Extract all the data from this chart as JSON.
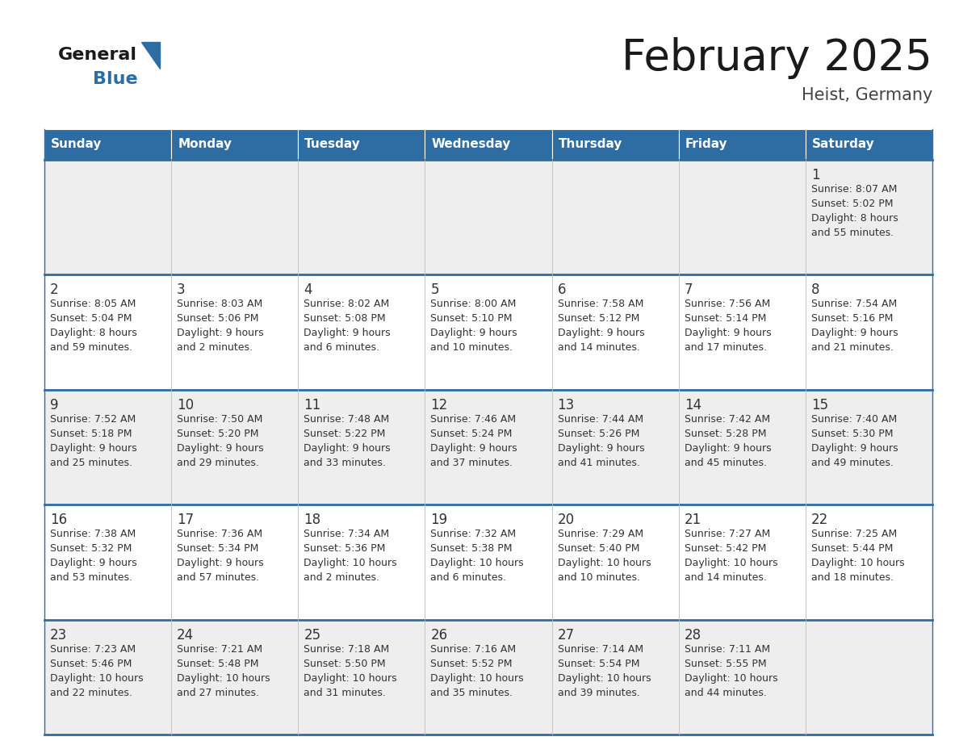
{
  "title": "February 2025",
  "subtitle": "Heist, Germany",
  "header_bg": "#2e6da4",
  "header_text_color": "#ffffff",
  "cell_bg_row0": "#eeeeee",
  "cell_bg_row1": "#ffffff",
  "cell_bg_row2": "#eeeeee",
  "cell_bg_row3": "#ffffff",
  "cell_bg_row4": "#eeeeee",
  "cell_border_color": "#2e6da4",
  "cell_text_color": "#333333",
  "days_of_week": [
    "Sunday",
    "Monday",
    "Tuesday",
    "Wednesday",
    "Thursday",
    "Friday",
    "Saturday"
  ],
  "calendar_data": [
    [
      {
        "day": "",
        "sunrise": "",
        "sunset": "",
        "daylight": ""
      },
      {
        "day": "",
        "sunrise": "",
        "sunset": "",
        "daylight": ""
      },
      {
        "day": "",
        "sunrise": "",
        "sunset": "",
        "daylight": ""
      },
      {
        "day": "",
        "sunrise": "",
        "sunset": "",
        "daylight": ""
      },
      {
        "day": "",
        "sunrise": "",
        "sunset": "",
        "daylight": ""
      },
      {
        "day": "",
        "sunrise": "",
        "sunset": "",
        "daylight": ""
      },
      {
        "day": "1",
        "sunrise": "8:07 AM",
        "sunset": "5:02 PM",
        "daylight": "8 hours\nand 55 minutes."
      }
    ],
    [
      {
        "day": "2",
        "sunrise": "8:05 AM",
        "sunset": "5:04 PM",
        "daylight": "8 hours\nand 59 minutes."
      },
      {
        "day": "3",
        "sunrise": "8:03 AM",
        "sunset": "5:06 PM",
        "daylight": "9 hours\nand 2 minutes."
      },
      {
        "day": "4",
        "sunrise": "8:02 AM",
        "sunset": "5:08 PM",
        "daylight": "9 hours\nand 6 minutes."
      },
      {
        "day": "5",
        "sunrise": "8:00 AM",
        "sunset": "5:10 PM",
        "daylight": "9 hours\nand 10 minutes."
      },
      {
        "day": "6",
        "sunrise": "7:58 AM",
        "sunset": "5:12 PM",
        "daylight": "9 hours\nand 14 minutes."
      },
      {
        "day": "7",
        "sunrise": "7:56 AM",
        "sunset": "5:14 PM",
        "daylight": "9 hours\nand 17 minutes."
      },
      {
        "day": "8",
        "sunrise": "7:54 AM",
        "sunset": "5:16 PM",
        "daylight": "9 hours\nand 21 minutes."
      }
    ],
    [
      {
        "day": "9",
        "sunrise": "7:52 AM",
        "sunset": "5:18 PM",
        "daylight": "9 hours\nand 25 minutes."
      },
      {
        "day": "10",
        "sunrise": "7:50 AM",
        "sunset": "5:20 PM",
        "daylight": "9 hours\nand 29 minutes."
      },
      {
        "day": "11",
        "sunrise": "7:48 AM",
        "sunset": "5:22 PM",
        "daylight": "9 hours\nand 33 minutes."
      },
      {
        "day": "12",
        "sunrise": "7:46 AM",
        "sunset": "5:24 PM",
        "daylight": "9 hours\nand 37 minutes."
      },
      {
        "day": "13",
        "sunrise": "7:44 AM",
        "sunset": "5:26 PM",
        "daylight": "9 hours\nand 41 minutes."
      },
      {
        "day": "14",
        "sunrise": "7:42 AM",
        "sunset": "5:28 PM",
        "daylight": "9 hours\nand 45 minutes."
      },
      {
        "day": "15",
        "sunrise": "7:40 AM",
        "sunset": "5:30 PM",
        "daylight": "9 hours\nand 49 minutes."
      }
    ],
    [
      {
        "day": "16",
        "sunrise": "7:38 AM",
        "sunset": "5:32 PM",
        "daylight": "9 hours\nand 53 minutes."
      },
      {
        "day": "17",
        "sunrise": "7:36 AM",
        "sunset": "5:34 PM",
        "daylight": "9 hours\nand 57 minutes."
      },
      {
        "day": "18",
        "sunrise": "7:34 AM",
        "sunset": "5:36 PM",
        "daylight": "10 hours\nand 2 minutes."
      },
      {
        "day": "19",
        "sunrise": "7:32 AM",
        "sunset": "5:38 PM",
        "daylight": "10 hours\nand 6 minutes."
      },
      {
        "day": "20",
        "sunrise": "7:29 AM",
        "sunset": "5:40 PM",
        "daylight": "10 hours\nand 10 minutes."
      },
      {
        "day": "21",
        "sunrise": "7:27 AM",
        "sunset": "5:42 PM",
        "daylight": "10 hours\nand 14 minutes."
      },
      {
        "day": "22",
        "sunrise": "7:25 AM",
        "sunset": "5:44 PM",
        "daylight": "10 hours\nand 18 minutes."
      }
    ],
    [
      {
        "day": "23",
        "sunrise": "7:23 AM",
        "sunset": "5:46 PM",
        "daylight": "10 hours\nand 22 minutes."
      },
      {
        "day": "24",
        "sunrise": "7:21 AM",
        "sunset": "5:48 PM",
        "daylight": "10 hours\nand 27 minutes."
      },
      {
        "day": "25",
        "sunrise": "7:18 AM",
        "sunset": "5:50 PM",
        "daylight": "10 hours\nand 31 minutes."
      },
      {
        "day": "26",
        "sunrise": "7:16 AM",
        "sunset": "5:52 PM",
        "daylight": "10 hours\nand 35 minutes."
      },
      {
        "day": "27",
        "sunrise": "7:14 AM",
        "sunset": "5:54 PM",
        "daylight": "10 hours\nand 39 minutes."
      },
      {
        "day": "28",
        "sunrise": "7:11 AM",
        "sunset": "5:55 PM",
        "daylight": "10 hours\nand 44 minutes."
      },
      {
        "day": "",
        "sunrise": "",
        "sunset": "",
        "daylight": ""
      }
    ]
  ],
  "logo_color_general": "#1a1a1a",
  "logo_color_blue": "#2e6da4",
  "logo_triangle_color": "#2e6da4",
  "title_fontsize": 38,
  "subtitle_fontsize": 15,
  "header_fontsize": 11,
  "day_number_fontsize": 12,
  "cell_text_fontsize": 9
}
